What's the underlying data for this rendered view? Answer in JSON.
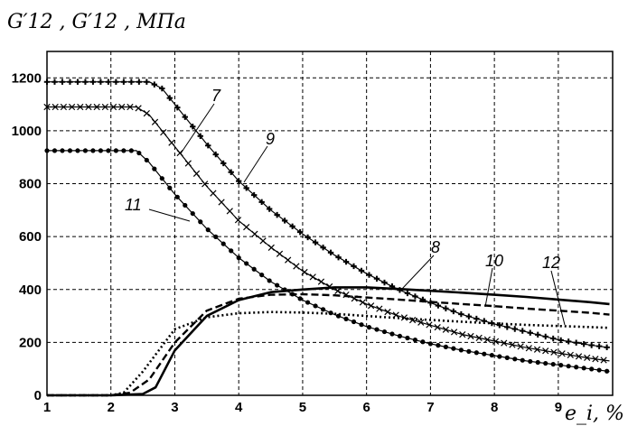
{
  "chart_data": {
    "type": "line",
    "ylabel": "G′12 , G′12 , МПа",
    "xlabel": "e_i, %",
    "xlim": [
      1,
      9.85
    ],
    "ylim": [
      0,
      1300
    ],
    "xticks": [
      1,
      2,
      3,
      4,
      5,
      6,
      7,
      8,
      9
    ],
    "yticks": [
      0,
      200,
      400,
      600,
      800,
      1000,
      1200
    ],
    "grid": true,
    "grid_style": "dashed",
    "curve_labels": [
      "7",
      "8",
      "9",
      "10",
      "11",
      "12"
    ],
    "series": [
      {
        "name": "9",
        "style": "line-plus",
        "x": [
          1,
          2,
          2.6,
          2.8,
          3.0,
          3.5,
          4.0,
          4.5,
          5.0,
          5.5,
          6.0,
          6.5,
          7.0,
          7.5,
          8.0,
          8.5,
          9.0,
          9.5,
          9.8
        ],
        "y": [
          1185,
          1185,
          1185,
          1160,
          1100,
          950,
          810,
          700,
          610,
          530,
          460,
          400,
          350,
          305,
          270,
          240,
          210,
          190,
          180
        ]
      },
      {
        "name": "7",
        "style": "line-cross",
        "x": [
          1,
          2,
          2.4,
          2.6,
          3.0,
          3.5,
          4.0,
          4.5,
          5.0,
          5.5,
          6.0,
          6.5,
          7.0,
          7.5,
          8.0,
          8.5,
          9.0,
          9.5,
          9.8
        ],
        "y": [
          1090,
          1090,
          1090,
          1060,
          940,
          790,
          660,
          560,
          470,
          400,
          345,
          300,
          265,
          230,
          205,
          180,
          160,
          140,
          130
        ]
      },
      {
        "name": "11",
        "style": "line-dot",
        "x": [
          1,
          2,
          2.4,
          2.6,
          3.0,
          3.5,
          4.0,
          4.5,
          5.0,
          5.5,
          6.0,
          6.5,
          7.0,
          7.5,
          8.0,
          8.5,
          9.0,
          9.5,
          9.8
        ],
        "y": [
          925,
          925,
          925,
          880,
          760,
          630,
          520,
          430,
          360,
          305,
          260,
          225,
          195,
          170,
          150,
          130,
          115,
          100,
          90
        ]
      },
      {
        "name": "8",
        "style": "solid",
        "x": [
          1,
          2,
          2.5,
          2.7,
          3.0,
          3.5,
          4.0,
          4.5,
          5.0,
          5.5,
          6.0,
          6.5,
          7.0,
          7.5,
          8.0,
          8.5,
          9.0,
          9.5,
          9.8
        ],
        "y": [
          0,
          0,
          5,
          30,
          170,
          300,
          360,
          390,
          400,
          408,
          408,
          402,
          395,
          388,
          380,
          372,
          362,
          352,
          345
        ]
      },
      {
        "name": "10",
        "style": "dashed",
        "x": [
          1,
          2,
          2.3,
          2.6,
          3.0,
          3.5,
          4.0,
          4.5,
          5.0,
          5.5,
          6.0,
          6.5,
          7.0,
          7.5,
          8.0,
          8.5,
          9.0,
          9.5,
          9.8
        ],
        "y": [
          0,
          0,
          10,
          60,
          200,
          320,
          365,
          380,
          382,
          378,
          370,
          362,
          353,
          345,
          337,
          328,
          320,
          312,
          305
        ]
      },
      {
        "name": "12",
        "style": "dotted",
        "x": [
          1,
          2,
          2.2,
          2.5,
          3.0,
          3.5,
          4.0,
          4.5,
          5.0,
          5.5,
          6.0,
          6.5,
          7.0,
          7.5,
          8.0,
          8.5,
          9.0,
          9.5,
          9.8
        ],
        "y": [
          0,
          0,
          10,
          90,
          250,
          295,
          310,
          315,
          313,
          308,
          300,
          292,
          285,
          278,
          272,
          266,
          262,
          258,
          255
        ]
      }
    ]
  }
}
